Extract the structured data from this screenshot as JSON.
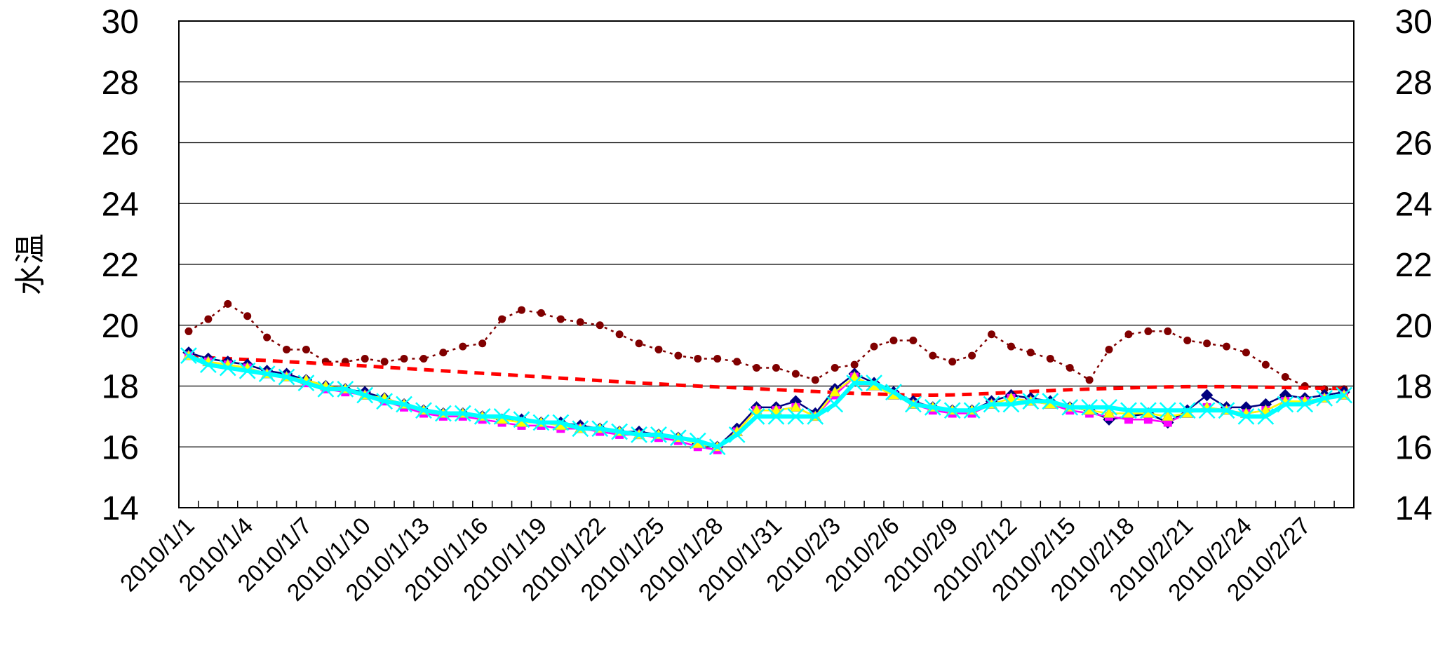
{
  "chart_data": {
    "type": "line",
    "ylabel": "水温",
    "ylim": [
      14,
      30
    ],
    "yticks": [
      14,
      16,
      18,
      20,
      22,
      24,
      26,
      28,
      30
    ],
    "y2ticks": [
      14,
      16,
      18,
      20,
      22,
      24,
      26,
      28,
      30
    ],
    "grid": true,
    "x": [
      "2010/1/1",
      "2010/1/2",
      "2010/1/3",
      "2010/1/4",
      "2010/1/5",
      "2010/1/6",
      "2010/1/7",
      "2010/1/8",
      "2010/1/9",
      "2010/1/10",
      "2010/1/11",
      "2010/1/12",
      "2010/1/13",
      "2010/1/14",
      "2010/1/15",
      "2010/1/16",
      "2010/1/17",
      "2010/1/18",
      "2010/1/19",
      "2010/1/20",
      "2010/1/21",
      "2010/1/22",
      "2010/1/23",
      "2010/1/24",
      "2010/1/25",
      "2010/1/26",
      "2010/1/27",
      "2010/1/28",
      "2010/1/29",
      "2010/1/30",
      "2010/1/31",
      "2010/2/1",
      "2010/2/2",
      "2010/2/3",
      "2010/2/4",
      "2010/2/5",
      "2010/2/6",
      "2010/2/7",
      "2010/2/8",
      "2010/2/9",
      "2010/2/10",
      "2010/2/11",
      "2010/2/12",
      "2010/2/13",
      "2010/2/14",
      "2010/2/15",
      "2010/2/16",
      "2010/2/17",
      "2010/2/18",
      "2010/2/19",
      "2010/2/20",
      "2010/2/21",
      "2010/2/22",
      "2010/2/23",
      "2010/2/24",
      "2010/2/25",
      "2010/2/26",
      "2010/2/27",
      "2010/2/28",
      "2010/3/1"
    ],
    "x_tick_labels": [
      "2010/1/1",
      "2010/1/4",
      "2010/1/7",
      "2010/1/10",
      "2010/1/13",
      "2010/1/16",
      "2010/1/19",
      "2010/1/22",
      "2010/1/25",
      "2010/1/28",
      "2010/1/31",
      "2010/2/3",
      "2010/2/6",
      "2010/2/9",
      "2010/2/12",
      "2010/2/15",
      "2010/2/18",
      "2010/2/21",
      "2010/2/24",
      "2010/2/27"
    ],
    "series": [
      {
        "color": "#00007f",
        "marker": "diamond",
        "line": "solid",
        "values": [
          19.1,
          18.9,
          18.8,
          18.7,
          18.5,
          18.4,
          18.2,
          18.0,
          17.9,
          17.8,
          17.6,
          17.4,
          17.2,
          17.1,
          17.1,
          17.0,
          16.9,
          16.9,
          16.8,
          16.8,
          16.7,
          16.6,
          16.5,
          16.5,
          16.4,
          16.3,
          16.1,
          16.0,
          16.6,
          17.3,
          17.3,
          17.5,
          17.1,
          17.9,
          18.4,
          18.1,
          17.8,
          17.5,
          17.3,
          17.2,
          17.2,
          17.5,
          17.7,
          17.6,
          17.5,
          17.3,
          17.2,
          16.9,
          17.0,
          17.1,
          16.8,
          17.2,
          17.7,
          17.3,
          17.3,
          17.4,
          17.7,
          17.6,
          17.7,
          17.8
        ]
      },
      {
        "color": "#ff00ff",
        "marker": "square",
        "line": "solid",
        "values": [
          19.0,
          18.8,
          18.7,
          18.6,
          18.4,
          18.3,
          18.1,
          17.9,
          17.8,
          17.7,
          17.5,
          17.3,
          17.1,
          17.0,
          17.0,
          16.9,
          16.8,
          16.7,
          16.7,
          16.6,
          16.6,
          16.5,
          16.4,
          16.4,
          16.3,
          16.2,
          16.0,
          15.9,
          16.5,
          17.2,
          17.2,
          17.3,
          17.0,
          17.7,
          18.3,
          18.0,
          17.7,
          17.4,
          17.2,
          17.1,
          17.1,
          17.4,
          17.6,
          17.5,
          17.4,
          17.2,
          17.1,
          17.0,
          16.9,
          16.9,
          16.8,
          17.1,
          17.3,
          17.2,
          17.1,
          17.2,
          17.5,
          17.5,
          17.6,
          17.7
        ]
      },
      {
        "color": "#ffff00",
        "marker": "triangle",
        "line": "solid",
        "values": [
          19.0,
          18.8,
          18.7,
          18.6,
          18.4,
          18.3,
          18.2,
          18.0,
          17.9,
          17.7,
          17.6,
          17.4,
          17.2,
          17.1,
          17.1,
          17.0,
          16.9,
          16.8,
          16.8,
          16.7,
          16.6,
          16.6,
          16.5,
          16.4,
          16.4,
          16.3,
          16.1,
          16.0,
          16.5,
          17.2,
          17.2,
          17.3,
          17.0,
          17.8,
          18.3,
          18.0,
          17.7,
          17.4,
          17.3,
          17.2,
          17.2,
          17.4,
          17.6,
          17.5,
          17.4,
          17.3,
          17.2,
          17.1,
          17.1,
          17.1,
          17.0,
          17.1,
          17.3,
          17.2,
          17.1,
          17.2,
          17.5,
          17.5,
          17.6,
          17.7
        ]
      },
      {
        "color": "#00ffff",
        "marker": "x",
        "line": "thick",
        "values": [
          19.0,
          18.7,
          18.6,
          18.5,
          18.4,
          18.3,
          18.1,
          17.9,
          17.9,
          17.7,
          17.5,
          17.4,
          17.2,
          17.1,
          17.1,
          17.0,
          17.0,
          16.9,
          16.8,
          16.8,
          16.6,
          16.6,
          16.5,
          16.4,
          16.4,
          16.3,
          16.2,
          16.0,
          16.4,
          17.0,
          17.0,
          17.0,
          17.0,
          17.4,
          18.1,
          18.1,
          17.8,
          17.4,
          17.3,
          17.2,
          17.2,
          17.4,
          17.4,
          17.5,
          17.5,
          17.3,
          17.3,
          17.3,
          17.2,
          17.2,
          17.2,
          17.2,
          17.2,
          17.2,
          17.0,
          17.0,
          17.4,
          17.4,
          17.6,
          17.7
        ]
      },
      {
        "color": "#800000",
        "marker": "circle",
        "line": "dotted",
        "values": [
          19.8,
          20.2,
          20.7,
          20.3,
          19.6,
          19.2,
          19.2,
          18.8,
          18.8,
          18.9,
          18.8,
          18.9,
          18.9,
          19.1,
          19.3,
          19.4,
          20.2,
          20.5,
          20.4,
          20.2,
          20.1,
          20.0,
          19.7,
          19.4,
          19.2,
          19.0,
          18.9,
          18.9,
          18.8,
          18.6,
          18.6,
          18.4,
          18.2,
          18.6,
          18.7,
          19.3,
          19.5,
          19.5,
          19.0,
          18.8,
          19.0,
          19.7,
          19.3,
          19.1,
          18.9,
          18.6,
          18.2,
          19.2,
          19.7,
          19.8,
          19.8,
          19.5,
          19.4,
          19.3,
          19.1,
          18.7,
          18.3,
          18.0,
          17.9,
          17.9
        ]
      },
      {
        "color": "#ff0000",
        "marker": "none",
        "line": "dashed",
        "values": [
          18.95,
          18.93,
          18.9,
          18.87,
          18.84,
          18.8,
          18.77,
          18.73,
          18.7,
          18.66,
          18.62,
          18.58,
          18.54,
          18.5,
          18.46,
          18.42,
          18.38,
          18.34,
          18.3,
          18.26,
          18.22,
          18.18,
          18.14,
          18.1,
          18.07,
          18.03,
          18.0,
          17.97,
          17.94,
          17.91,
          17.88,
          17.85,
          17.82,
          17.79,
          17.76,
          17.74,
          17.72,
          17.7,
          17.7,
          17.71,
          17.73,
          17.76,
          17.79,
          17.82,
          17.85,
          17.88,
          17.9,
          17.92,
          17.94,
          17.96,
          17.97,
          17.98,
          17.98,
          17.98,
          17.97,
          17.96,
          17.95,
          17.94,
          17.93,
          17.92
        ]
      }
    ]
  }
}
